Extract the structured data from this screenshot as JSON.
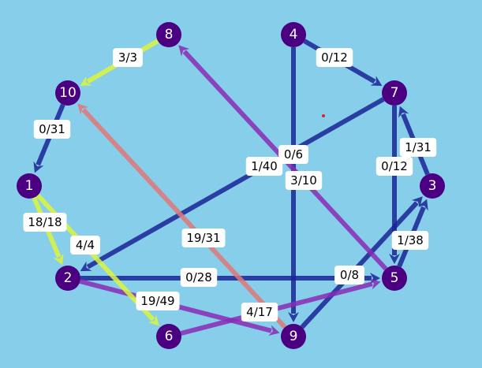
{
  "graph": {
    "background": "#87CEEB",
    "node_color": "#4B0082",
    "edge_colors": {
      "dark_blue": "#1A2496",
      "purple": "#8A2BB4",
      "yellow": "#DCF53C",
      "salmon": "#E07878"
    },
    "nodes": [
      {
        "id": "1",
        "label": "1"
      },
      {
        "id": "2",
        "label": "2"
      },
      {
        "id": "3",
        "label": "3"
      },
      {
        "id": "4",
        "label": "4"
      },
      {
        "id": "5",
        "label": "5"
      },
      {
        "id": "6",
        "label": "6"
      },
      {
        "id": "7",
        "label": "7"
      },
      {
        "id": "8",
        "label": "8"
      },
      {
        "id": "9",
        "label": "9"
      },
      {
        "id": "10",
        "label": "10"
      }
    ],
    "edges": [
      {
        "from": "4",
        "to": "7",
        "label": "0/12",
        "color": "dark_blue"
      },
      {
        "from": "4",
        "to": "9",
        "label": "0/6",
        "color": "dark_blue"
      },
      {
        "from": "7",
        "to": "5",
        "label": "0/12",
        "color": "dark_blue"
      },
      {
        "from": "7",
        "to": "2",
        "label": "1/40",
        "color": "dark_blue"
      },
      {
        "from": "3",
        "to": "7",
        "label": "1/31",
        "color": "dark_blue"
      },
      {
        "from": "5",
        "to": "3",
        "label": "1/38",
        "color": "dark_blue"
      },
      {
        "from": "10",
        "to": "1",
        "label": "0/31",
        "color": "dark_blue"
      },
      {
        "from": "2",
        "to": "5",
        "label": "0/28",
        "color": "dark_blue"
      },
      {
        "from": "9",
        "to": "3",
        "label": "0/8",
        "color": "dark_blue"
      },
      {
        "from": "5",
        "to": "8",
        "label": "3/10",
        "color": "purple"
      },
      {
        "from": "2",
        "to": "9",
        "label": "19/49",
        "color": "purple"
      },
      {
        "from": "6",
        "to": "5",
        "label": "4/17",
        "color": "purple"
      },
      {
        "from": "8",
        "to": "10",
        "label": "3/3",
        "color": "yellow"
      },
      {
        "from": "1",
        "to": "2",
        "label": "18/18",
        "color": "yellow"
      },
      {
        "from": "1",
        "to": "6",
        "label": "4/4",
        "color": "yellow"
      },
      {
        "from": "9",
        "to": "10",
        "label": "19/31",
        "color": "salmon"
      }
    ]
  }
}
